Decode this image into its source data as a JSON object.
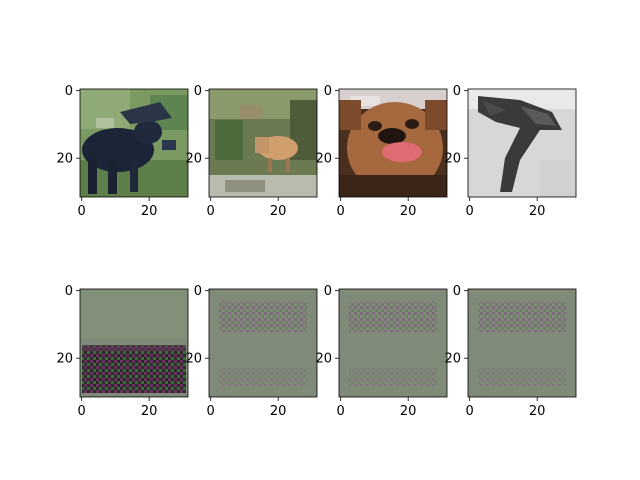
{
  "chart_data": [
    {
      "type": "heatmap",
      "row": 1,
      "content": "moose in grass",
      "xticks": [
        "0",
        "20"
      ],
      "yticks": [
        "0",
        "20"
      ],
      "xlim": [
        -0.5,
        31.5
      ],
      "ylim": [
        31.5,
        -0.5
      ],
      "colors": {
        "background": "#6f9158",
        "foreground": "#1a2436",
        "accent": "#3f5f35"
      }
    },
    {
      "type": "heatmap",
      "row": 1,
      "content": "deer in forest",
      "xticks": [
        "0",
        "20"
      ],
      "yticks": [
        "0",
        "20"
      ],
      "xlim": [
        -0.5,
        31.5
      ],
      "ylim": [
        31.5,
        -0.5
      ],
      "colors": {
        "background": "#5a6a45",
        "foreground": "#c99a6a",
        "accent": "#7b8b60"
      }
    },
    {
      "type": "heatmap",
      "row": 1,
      "content": "dog face",
      "xticks": [
        "0",
        "20"
      ],
      "yticks": [
        "0",
        "20"
      ],
      "xlim": [
        -0.5,
        31.5
      ],
      "ylim": [
        31.5,
        -0.5
      ],
      "colors": {
        "background": "#3a2418",
        "foreground": "#a0643f",
        "accent": "#e0606a"
      }
    },
    {
      "type": "heatmap",
      "row": 1,
      "content": "dark bird shape on light background",
      "xticks": [
        "0",
        "20"
      ],
      "yticks": [
        "0",
        "20"
      ],
      "xlim": [
        -0.5,
        31.5
      ],
      "ylim": [
        31.5,
        -0.5
      ],
      "colors": {
        "background": "#d7d9d8",
        "foreground": "#3a3a3a",
        "accent": "#6a6a6a"
      }
    },
    {
      "type": "heatmap",
      "row": 2,
      "content": "reconstruction noise with dark checkered band in lower half",
      "xticks": [
        "0",
        "20"
      ],
      "yticks": [
        "0",
        "20"
      ],
      "xlim": [
        -0.5,
        31.5
      ],
      "ylim": [
        31.5,
        -0.5
      ],
      "colors": {
        "background": "#7f8a78",
        "foreground": "#2a2a2a",
        "accent": "#7a2a6a"
      }
    },
    {
      "type": "heatmap",
      "row": 2,
      "content": "faint checkered pattern",
      "xticks": [
        "0",
        "20"
      ],
      "yticks": [
        "0",
        "20"
      ],
      "xlim": [
        -0.5,
        31.5
      ],
      "ylim": [
        31.5,
        -0.5
      ],
      "colors": {
        "background": "#7f8a78",
        "foreground": "#5f6858",
        "accent": "#7a5a7a"
      }
    },
    {
      "type": "heatmap",
      "row": 2,
      "content": "faint checkered pattern",
      "xticks": [
        "0",
        "20"
      ],
      "yticks": [
        "0",
        "20"
      ],
      "xlim": [
        -0.5,
        31.5
      ],
      "ylim": [
        31.5,
        -0.5
      ],
      "colors": {
        "background": "#7f8a78",
        "foreground": "#5f6858",
        "accent": "#7a5a7a"
      }
    },
    {
      "type": "heatmap",
      "row": 2,
      "content": "faint checkered pattern",
      "xticks": [
        "0",
        "20"
      ],
      "yticks": [
        "0",
        "20"
      ],
      "xlim": [
        -0.5,
        31.5
      ],
      "ylim": [
        31.5,
        -0.5
      ],
      "colors": {
        "background": "#7f8a78",
        "foreground": "#5f6858",
        "accent": "#7a5a7a"
      }
    }
  ]
}
